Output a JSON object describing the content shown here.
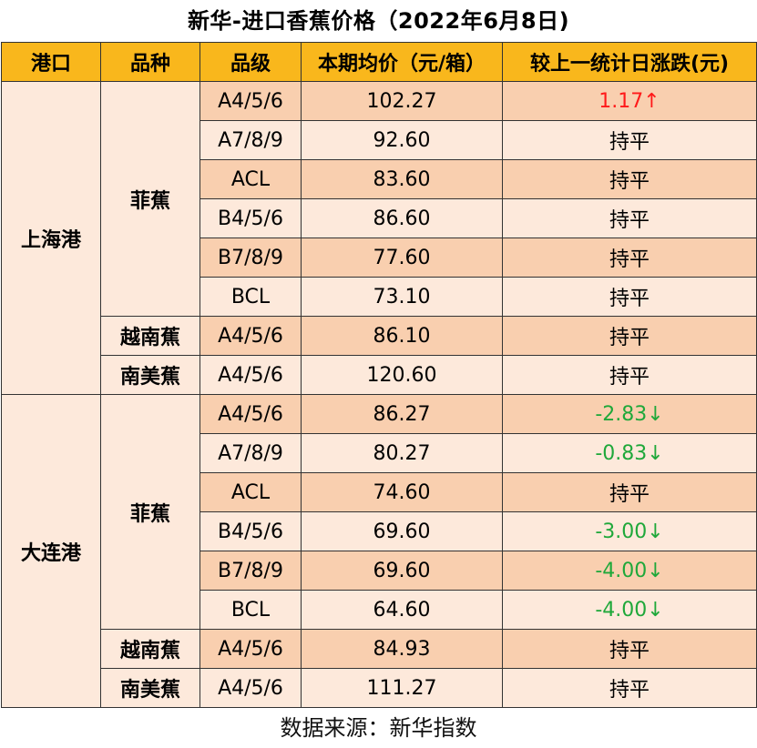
{
  "title": "新华-进口香蕉价格（2022年6月8日)",
  "headers": [
    "港口",
    "品种",
    "品级",
    "本期均价（元/箱）",
    "较上一统计日涨跌(元)"
  ],
  "ports": [
    {
      "name": "上海港",
      "groups": [
        {
          "variety": "菲蕉",
          "rows": [
            {
              "grade": "A4/5/6",
              "price": "102.27",
              "change": "1.17↑",
              "trend": "up"
            },
            {
              "grade": "A7/8/9",
              "price": "92.60",
              "change": "持平",
              "trend": "flat"
            },
            {
              "grade": "ACL",
              "price": "83.60",
              "change": "持平",
              "trend": "flat"
            },
            {
              "grade": "B4/5/6",
              "price": "86.60",
              "change": "持平",
              "trend": "flat"
            },
            {
              "grade": "B7/8/9",
              "price": "77.60",
              "change": "持平",
              "trend": "flat"
            },
            {
              "grade": "BCL",
              "price": "73.10",
              "change": "持平",
              "trend": "flat"
            }
          ]
        },
        {
          "variety": "越南蕉",
          "rows": [
            {
              "grade": "A4/5/6",
              "price": "86.10",
              "change": "持平",
              "trend": "flat"
            }
          ]
        },
        {
          "variety": "南美蕉",
          "rows": [
            {
              "grade": "A4/5/6",
              "price": "120.60",
              "change": "持平",
              "trend": "flat"
            }
          ]
        }
      ]
    },
    {
      "name": "大连港",
      "groups": [
        {
          "variety": "菲蕉",
          "rows": [
            {
              "grade": "A4/5/6",
              "price": "86.27",
              "change": "-2.83↓",
              "trend": "down"
            },
            {
              "grade": "A7/8/9",
              "price": "80.27",
              "change": "-0.83↓",
              "trend": "down"
            },
            {
              "grade": "ACL",
              "price": "74.60",
              "change": "持平",
              "trend": "flat"
            },
            {
              "grade": "B4/5/6",
              "price": "69.60",
              "change": "-3.00↓",
              "trend": "down"
            },
            {
              "grade": "B7/8/9",
              "price": "69.60",
              "change": "-4.00↓",
              "trend": "down"
            },
            {
              "grade": "BCL",
              "price": "64.60",
              "change": "-4.00↓",
              "trend": "down"
            }
          ]
        },
        {
          "variety": "越南蕉",
          "rows": [
            {
              "grade": "A4/5/6",
              "price": "84.93",
              "change": "持平",
              "trend": "flat"
            }
          ]
        },
        {
          "variety": "南美蕉",
          "rows": [
            {
              "grade": "A4/5/6",
              "price": "111.27",
              "change": "持平",
              "trend": "flat"
            }
          ]
        }
      ]
    }
  ],
  "colors": {
    "header_bg": "#f9b71c",
    "row_dark": "#f9cfaf",
    "row_light": "#fde9db",
    "up": "#ff1a1a",
    "down": "#1fa83a"
  },
  "source": "数据来源：新华指数"
}
